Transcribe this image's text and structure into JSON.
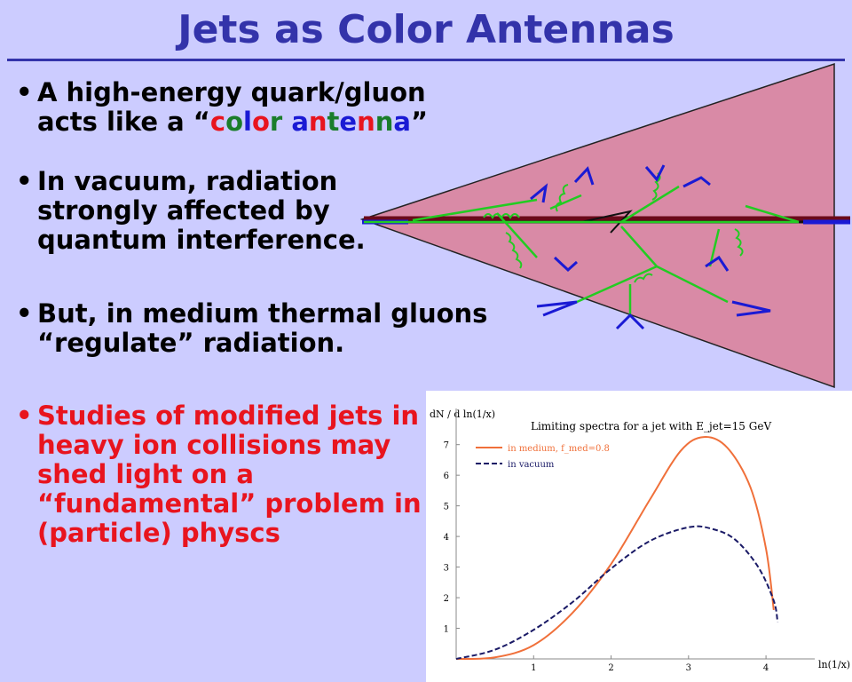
{
  "title": "Jets as Color Antennas",
  "bullets": [
    {
      "pre": "A high-energy quark/gluon acts like a “",
      "colored": "color antenna",
      "post": "”"
    },
    {
      "text": "In vacuum, radiation strongly affected by quantum interference."
    },
    {
      "text": "But, in medium thermal gluons “regulate” radiation."
    },
    {
      "text": "Studies of modified jets in heavy ion collisions may shed light on a “fundamental” problem in (particle) physcs"
    }
  ],
  "colors": {
    "title": "#3333aa",
    "background": "#ccccff",
    "cone": "#d98aa6",
    "gluon": "#22cc22",
    "quark": "#1a1ad4",
    "highlight": "#e8141e",
    "medium_curve": "#f0703a",
    "vacuum_curve": "#1a1a66"
  },
  "chart_data": {
    "type": "line",
    "title": "Limiting spectra for a jet with E_jet=15 GeV",
    "ylabel": "dN / d ln(1/x)",
    "xlabel": "ln(1/x)",
    "xlim": [
      0,
      4.4
    ],
    "ylim": [
      0,
      7.6
    ],
    "xticks": [
      1,
      2,
      3,
      4
    ],
    "yticks": [
      1,
      2,
      3,
      4,
      5,
      6,
      7
    ],
    "legend_position": "top-left",
    "series": [
      {
        "name": "in medium, f_med=0.8",
        "style": "solid",
        "color": "#f0703a",
        "x": [
          0,
          0.5,
          1.0,
          1.5,
          2.0,
          2.5,
          2.9,
          3.2,
          3.5,
          3.8,
          4.0,
          4.1
        ],
        "y": [
          0,
          0.05,
          0.45,
          1.5,
          3.1,
          5.2,
          6.8,
          7.25,
          6.9,
          5.6,
          3.6,
          1.6
        ]
      },
      {
        "name": "in vacuum",
        "style": "dashed",
        "color": "#1a1a66",
        "x": [
          0,
          0.5,
          1.0,
          1.5,
          2.0,
          2.5,
          3.0,
          3.3,
          3.6,
          3.9,
          4.1,
          4.15
        ],
        "y": [
          0,
          0.3,
          0.95,
          1.85,
          2.95,
          3.85,
          4.3,
          4.25,
          3.9,
          3.0,
          1.9,
          1.2
        ]
      }
    ]
  }
}
